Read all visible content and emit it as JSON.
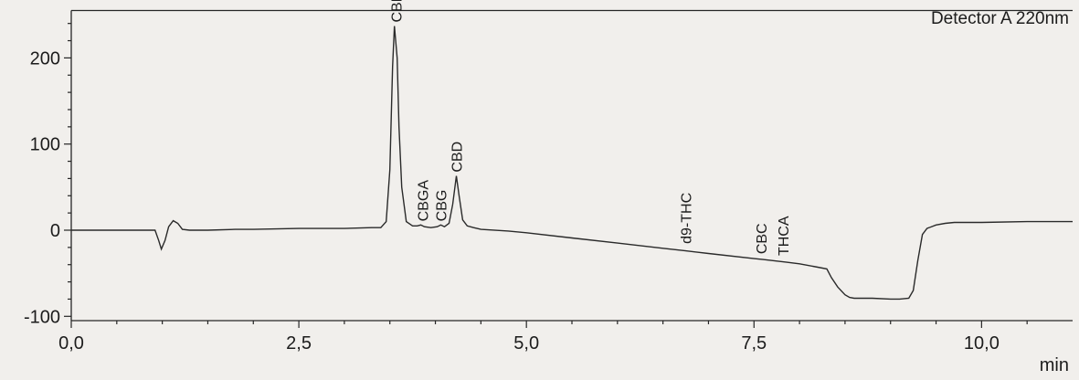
{
  "chart_data": {
    "type": "line",
    "title": "",
    "detector_label": "Detector A 220nm",
    "xlabel": "min",
    "ylabel": "",
    "xlim": [
      0,
      11.0
    ],
    "ylim": [
      -105,
      255
    ],
    "x_ticks": [
      {
        "value": 0,
        "label": "0,0"
      },
      {
        "value": 2.5,
        "label": "2,5"
      },
      {
        "value": 5.0,
        "label": "5,0"
      },
      {
        "value": 7.5,
        "label": "7,5"
      },
      {
        "value": 10.0,
        "label": "10,0"
      }
    ],
    "y_ticks": [
      {
        "value": -100,
        "label": "-100"
      },
      {
        "value": 0,
        "label": "0"
      },
      {
        "value": 100,
        "label": "100"
      },
      {
        "value": 200,
        "label": "200"
      }
    ],
    "series": [
      {
        "x": [
          0.0,
          0.5,
          0.92,
          0.96,
          0.99,
          1.03,
          1.07,
          1.12,
          1.17,
          1.22,
          1.3,
          1.5,
          1.8,
          2.0,
          2.5,
          3.0,
          3.3,
          3.4,
          3.46,
          3.5,
          3.53,
          3.55,
          3.58,
          3.6,
          3.63,
          3.68,
          3.75,
          3.8,
          3.84,
          3.88,
          3.95,
          4.02,
          4.06,
          4.1,
          4.15,
          4.19,
          4.23,
          4.26,
          4.3,
          4.35,
          4.42,
          4.5,
          4.8,
          5.0,
          5.5,
          6.0,
          6.5,
          6.75,
          7.0,
          7.5,
          7.6,
          7.85,
          8.0,
          8.2,
          8.3,
          8.35,
          8.42,
          8.5,
          8.55,
          8.6,
          8.8,
          9.0,
          9.1,
          9.2,
          9.25,
          9.3,
          9.35,
          9.4,
          9.5,
          9.6,
          9.7,
          9.8,
          10.0,
          10.5,
          11.0
        ],
        "y": [
          0,
          0,
          0,
          -12,
          -22,
          -12,
          4,
          11,
          8,
          1,
          0,
          0,
          1,
          1,
          2,
          2,
          3,
          3,
          10,
          70,
          190,
          237,
          200,
          120,
          50,
          10,
          5,
          5,
          6,
          4,
          3,
          4,
          6,
          4,
          8,
          30,
          63,
          40,
          12,
          5,
          3,
          1,
          -1,
          -3,
          -9,
          -15,
          -21,
          -24,
          -27,
          -33,
          -34,
          -37,
          -39,
          -43,
          -45,
          -55,
          -66,
          -75,
          -78,
          -79,
          -79,
          -80,
          -80,
          -79,
          -70,
          -35,
          -5,
          2,
          6,
          8,
          9,
          9,
          9,
          10,
          10
        ]
      }
    ],
    "peaks": [
      {
        "name": "CBDA",
        "x": 3.57,
        "y": 237
      },
      {
        "name": "CBGA",
        "x": 3.86,
        "y": 6
      },
      {
        "name": "CBG",
        "x": 4.06,
        "y": 6
      },
      {
        "name": "CBD",
        "x": 4.23,
        "y": 63
      },
      {
        "name": "d9-THC",
        "x": 6.75,
        "y": -20
      },
      {
        "name": "CBC",
        "x": 7.58,
        "y": -32
      },
      {
        "name": "THCA",
        "x": 7.82,
        "y": -34
      }
    ],
    "grid": false
  }
}
